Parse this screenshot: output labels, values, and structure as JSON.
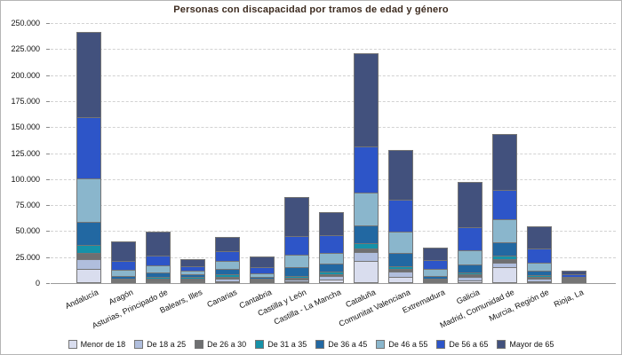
{
  "chart_data": {
    "type": "bar",
    "stacked": true,
    "title": "Personas con discapacidad por tramos de edad y género",
    "xlabel": "",
    "ylabel": "",
    "ylim": [
      0,
      250000
    ],
    "ytick_step": 25000,
    "ytick_labels": [
      "0",
      "25.000",
      "50.000",
      "75.000",
      "100.000",
      "125.000",
      "150.000",
      "175.000",
      "200.000",
      "225.000",
      "250.000"
    ],
    "grid": "horizontal-dashed",
    "legend_position": "bottom",
    "categories": [
      "Andalucía",
      "Aragón",
      "Asturias, Principado de",
      "Balears, Illes",
      "Canarias",
      "Cantabria",
      "Castilla y León",
      "Castilla - La Mancha",
      "Cataluña",
      "Comunitat Valenciana",
      "Extremadura",
      "Galicia",
      "Madrid, Comunidad de",
      "Murcia, Región de",
      "Rioja, La"
    ],
    "series": [
      {
        "name": "Menor de 18",
        "color": "#d9ddee",
        "values": [
          14000,
          400,
          700,
          600,
          1700,
          100,
          700,
          3100,
          21600,
          6200,
          300,
          2800,
          15000,
          2000,
          400
        ]
      },
      {
        "name": "De 18 a 25",
        "color": "#b0bedd",
        "values": [
          9300,
          500,
          1200,
          800,
          2800,
          200,
          1600,
          3100,
          8500,
          4900,
          400,
          3400,
          4500,
          2300,
          400
        ]
      },
      {
        "name": "De 26 a 30",
        "color": "#6e6f71",
        "values": [
          6300,
          1100,
          1500,
          1300,
          1700,
          300,
          1400,
          1800,
          3700,
          2800,
          500,
          2900,
          3000,
          1900,
          300
        ]
      },
      {
        "name": "De 31 a 35",
        "color": "#1691a8",
        "values": [
          7900,
          900,
          1500,
          1300,
          2300,
          300,
          2000,
          2200,
          4800,
          2900,
          500,
          1700,
          3000,
          1800,
          300
        ]
      },
      {
        "name": "De 36 a 45",
        "color": "#2268a2",
        "values": [
          21900,
          2500,
          3900,
          2800,
          5100,
          1900,
          8500,
          7700,
          17100,
          12800,
          2800,
          7700,
          12500,
          4000,
          800
        ]
      },
      {
        "name": "De 46 a 55",
        "color": "#8ab6cc",
        "values": [
          41600,
          5700,
          6500,
          3700,
          8000,
          3800,
          12200,
          10500,
          31300,
          20400,
          6600,
          13300,
          22000,
          8000,
          1000
        ]
      },
      {
        "name": "De 56 a 65",
        "color": "#2d55c8",
        "values": [
          59000,
          8600,
          9400,
          4000,
          9700,
          5600,
          17900,
          17000,
          44300,
          30700,
          8500,
          21900,
          28000,
          14000,
          2300
        ]
      },
      {
        "name": "Mayor de 65",
        "color": "#42517d",
        "values": [
          82000,
          18400,
          23300,
          7100,
          13600,
          10600,
          37200,
          22100,
          89700,
          47800,
          12200,
          43500,
          54000,
          21000,
          3500
        ]
      }
    ],
    "region_totals": [
      242000,
      38100,
      48000,
      21600,
      44900,
      22800,
      81500,
      67500,
      221000,
      128500,
      31800,
      97200,
      142000,
      55000,
      9000
    ]
  },
  "styles": {
    "title_color": "#3d2b1f",
    "grid_color": "#d2d2d2",
    "axis_color": "#9a9a9a",
    "segment_border_color": "#757575",
    "background": "#ffffff"
  }
}
